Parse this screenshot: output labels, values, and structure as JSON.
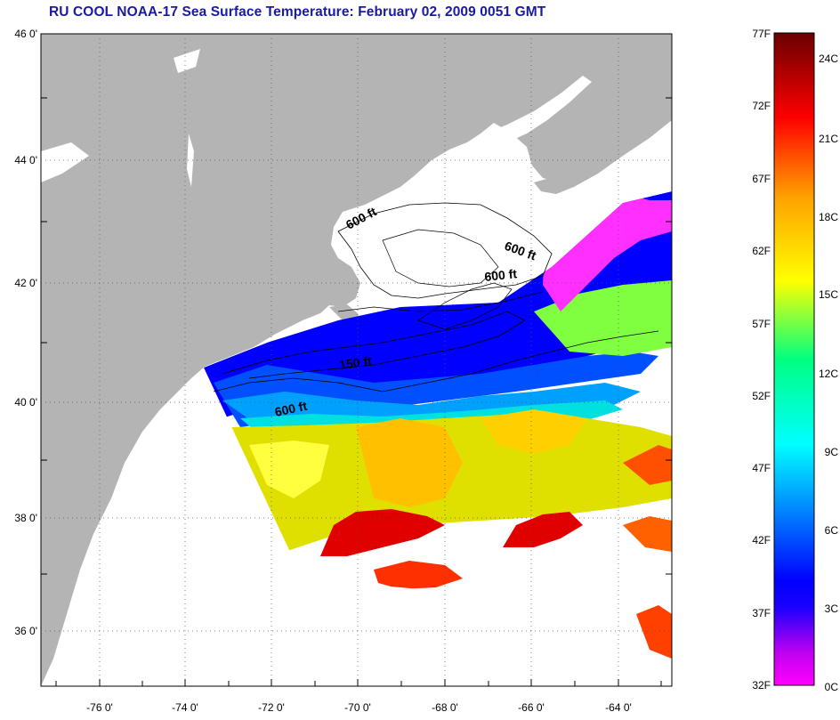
{
  "title": "RU COOL  NOAA-17  Sea Surface Temperature:  February 02, 2009 0051 GMT",
  "lat_labels": [
    "46 0'",
    "44 0'",
    "42 0'",
    "40 0'",
    "38 0'",
    "36 0'"
  ],
  "lon_labels": [
    "-76 0'",
    "-74 0'",
    "-72 0'",
    "-70 0'",
    "-68 0'",
    "-66 0'",
    "-64 0'"
  ],
  "contour_labels": [
    "600 ft",
    "600 ft",
    "600 ft",
    "150 ft",
    "600 ft"
  ],
  "colorbar": {
    "f_labels": [
      "77F",
      "72F",
      "67F",
      "62F",
      "57F",
      "52F",
      "47F",
      "42F",
      "37F",
      "32F"
    ],
    "c_labels": [
      "24C",
      "21C",
      "18C",
      "15C",
      "12C",
      "9C",
      "6C",
      "3C",
      "0C"
    ]
  },
  "colors": {
    "land": "#b4b4b4",
    "title": "#1a1aa0",
    "scale": [
      "#ff00ff",
      "#6a00d0",
      "#0000ff",
      "#0077ff",
      "#00ffff",
      "#00ff60",
      "#ffff00",
      "#ffa000",
      "#ff0000",
      "#6a0000"
    ]
  }
}
